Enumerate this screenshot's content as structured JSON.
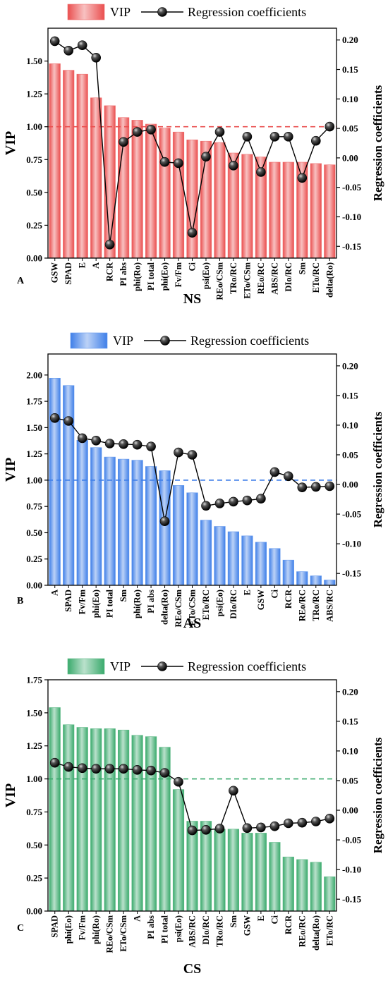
{
  "chart_data": [
    {
      "type": "bar",
      "panel_label": "A",
      "title": "NS",
      "ylabel": "VIP",
      "y2label": "Regression coefficients",
      "legend": {
        "bar": "VIP",
        "line": "Regression coefficients"
      },
      "ylim": [
        0,
        1.75
      ],
      "yticks": [
        "0.00",
        "0.25",
        "0.50",
        "0.75",
        "1.00",
        "1.25",
        "1.50"
      ],
      "y2lim": [
        -0.17,
        0.22
      ],
      "y2ticks": [
        "-0.15",
        "-0.10",
        "-0.05",
        "0.00",
        "0.05",
        "0.10",
        "0.15",
        "0.20"
      ],
      "threshold": 1.0,
      "color": "#ea4f4f",
      "categories": [
        "GSW",
        "SPAD",
        "E",
        "A",
        "RCR",
        "PI abs",
        "phi(Ro)",
        "PI total",
        "phi(Eo)",
        "Fv/Fm",
        "Ci",
        "psi(Eo)",
        "REo/CSm",
        "TRo/RC",
        "ETo/CSm",
        "REo/RC",
        "ABS/RC",
        "DIo/RC",
        "Sm",
        "ETo/RC",
        "delta(Ro)"
      ],
      "vip": [
        1.48,
        1.43,
        1.4,
        1.22,
        1.16,
        1.07,
        1.05,
        1.02,
        0.99,
        0.96,
        0.9,
        0.89,
        0.88,
        0.8,
        0.79,
        0.77,
        0.73,
        0.73,
        0.73,
        0.72,
        0.71
      ],
      "coefficients": [
        0.198,
        0.182,
        0.191,
        0.17,
        -0.147,
        0.027,
        0.044,
        0.048,
        -0.007,
        -0.009,
        -0.127,
        0.002,
        0.044,
        -0.013,
        0.036,
        -0.024,
        0.036,
        0.036,
        -0.034,
        0.029,
        0.053
      ]
    },
    {
      "type": "bar",
      "panel_label": "B",
      "title": "AS",
      "ylabel": "VIP",
      "y2label": "Regression coefficients",
      "legend": {
        "bar": "VIP",
        "line": "Regression coefficients"
      },
      "ylim": [
        0,
        2.2
      ],
      "yticks": [
        "0.00",
        "0.25",
        "0.50",
        "0.75",
        "1.00",
        "1.25",
        "1.50",
        "1.75",
        "2.00"
      ],
      "y2lim": [
        -0.17,
        0.22
      ],
      "y2ticks": [
        "-0.15",
        "-0.10",
        "-0.05",
        "0.00",
        "0.05",
        "0.10",
        "0.15",
        "0.20"
      ],
      "threshold": 1.0,
      "color": "#3f7fe8",
      "categories": [
        "A",
        "SPAD",
        "Fv/Fm",
        "phi(Eo)",
        "PI total",
        "Sm",
        "phi(Ro)",
        "PI abs",
        "delta(Ro)",
        "REo/CSm",
        "ETo/CSm",
        "ETo/RC",
        "psi(Eo)",
        "DIo/RC",
        "E",
        "GSW",
        "Ci",
        "RCR",
        "REo/RC",
        "TRo/RC",
        "ABS/RC"
      ],
      "vip": [
        1.97,
        1.9,
        1.38,
        1.31,
        1.22,
        1.2,
        1.19,
        1.13,
        1.09,
        0.95,
        0.88,
        0.62,
        0.56,
        0.51,
        0.47,
        0.41,
        0.35,
        0.24,
        0.13,
        0.09,
        0.05
      ],
      "coefficients": [
        0.112,
        0.107,
        0.078,
        0.074,
        0.069,
        0.068,
        0.067,
        0.064,
        -0.062,
        0.054,
        0.05,
        -0.036,
        -0.032,
        -0.029,
        -0.027,
        -0.024,
        0.021,
        0.014,
        -0.005,
        -0.004,
        -0.003
      ]
    },
    {
      "type": "bar",
      "panel_label": "C",
      "title": "CS",
      "ylabel": "VIP",
      "y2label": "Regression coefficients",
      "legend": {
        "bar": "VIP",
        "line": "Regression coefficients"
      },
      "ylim": [
        0,
        1.75
      ],
      "yticks": [
        "0.00",
        "0.25",
        "0.50",
        "0.75",
        "1.00",
        "1.25",
        "1.50",
        "1.75"
      ],
      "y2lim": [
        -0.17,
        0.22
      ],
      "y2ticks": [
        "-0.15",
        "-0.10",
        "-0.05",
        "0.00",
        "0.05",
        "0.10",
        "0.15",
        "0.20"
      ],
      "threshold": 1.0,
      "color": "#3aaa6c",
      "categories": [
        "SPAD",
        "phi(Eo)",
        "Fv/Fm",
        "phi(Ro)",
        "REo/CSm",
        "ETo/CSm",
        "A",
        "PI abs",
        "PI total",
        "psi(Eo)",
        "ABS/RC",
        "DIo/RC",
        "TRo/RC",
        "Sm",
        "GSW",
        "E",
        "Ci",
        "RCR",
        "REo/RC",
        "delta(Ro)",
        "ETo/RC"
      ],
      "vip": [
        1.54,
        1.41,
        1.39,
        1.38,
        1.38,
        1.37,
        1.33,
        1.32,
        1.24,
        0.92,
        0.68,
        0.68,
        0.62,
        0.62,
        0.59,
        0.59,
        0.52,
        0.41,
        0.39,
        0.37,
        0.26
      ],
      "coefficients": [
        0.08,
        0.073,
        0.071,
        0.07,
        0.07,
        0.07,
        0.068,
        0.067,
        0.063,
        0.048,
        -0.034,
        -0.033,
        -0.031,
        0.033,
        -0.03,
        -0.029,
        -0.027,
        -0.022,
        -0.021,
        -0.019,
        -0.014
      ]
    }
  ]
}
